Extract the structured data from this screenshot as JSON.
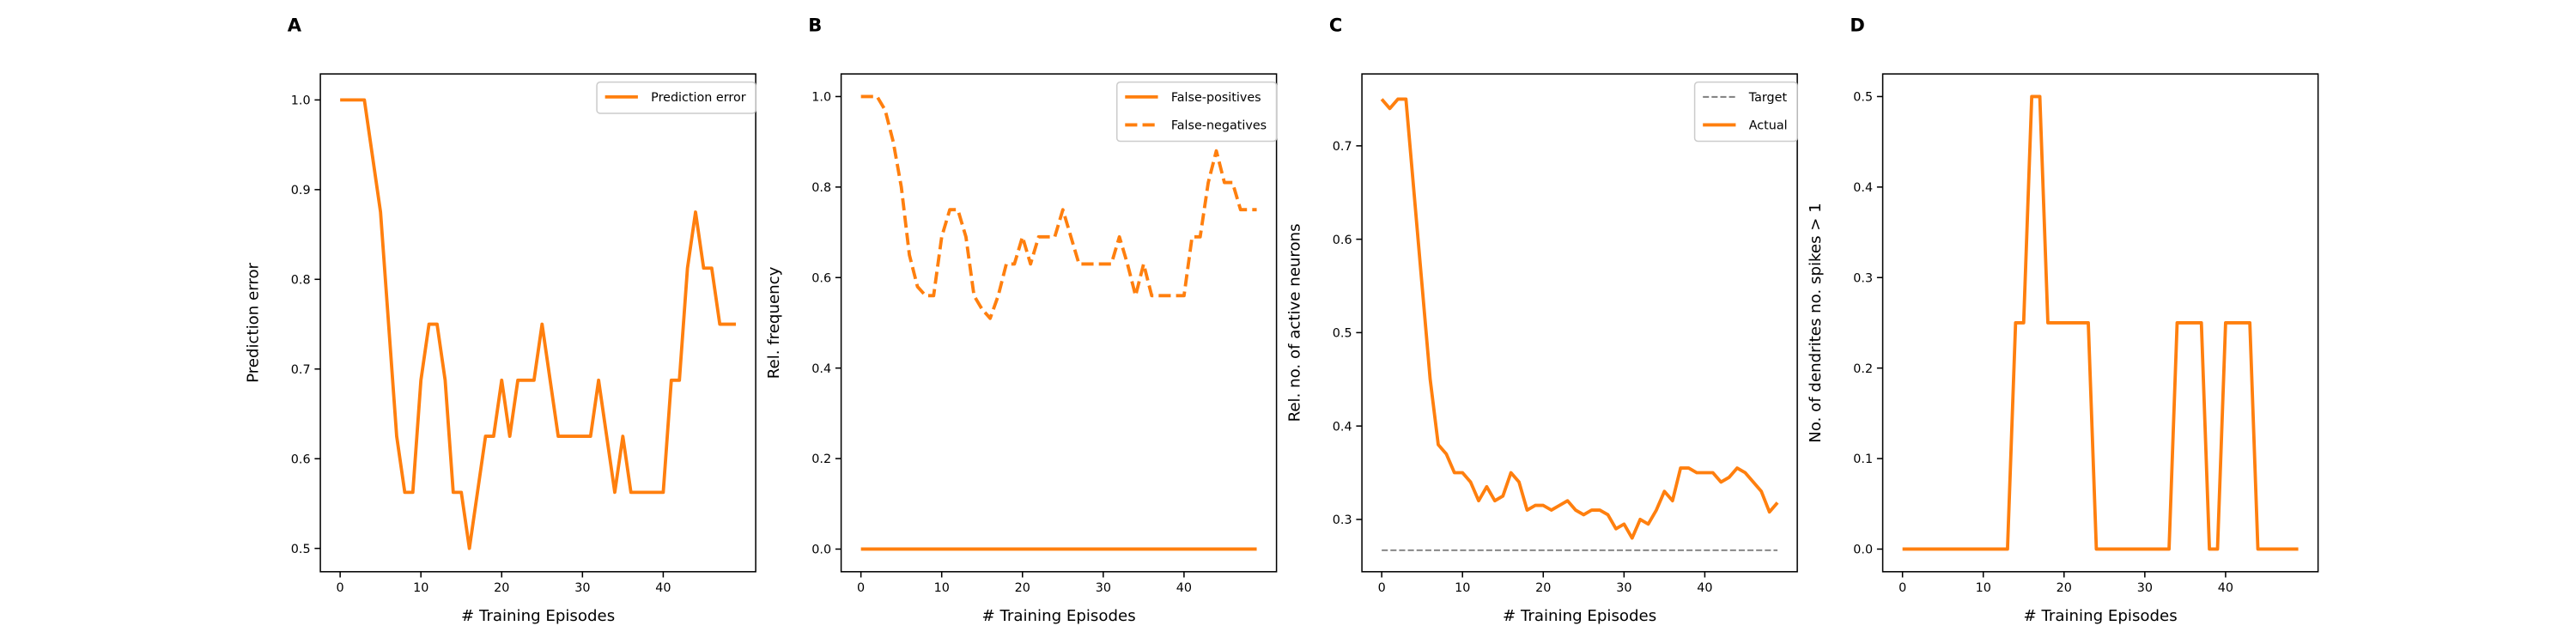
{
  "chart_data": [
    {
      "type": "line",
      "panel_label": "A",
      "xlabel": "# Training Episodes",
      "ylabel": "Prediction error",
      "x": [
        0,
        1,
        2,
        3,
        4,
        5,
        6,
        7,
        8,
        9,
        10,
        11,
        12,
        13,
        14,
        15,
        16,
        17,
        18,
        19,
        20,
        21,
        22,
        23,
        24,
        25,
        26,
        27,
        28,
        29,
        30,
        31,
        32,
        33,
        34,
        35,
        36,
        37,
        38,
        39,
        40,
        41,
        42,
        43,
        44,
        45,
        46,
        47,
        48,
        49
      ],
      "series": [
        {
          "name": "Prediction error",
          "color": "#ff7f0e",
          "dash": "solid",
          "values": [
            1,
            1,
            1,
            1,
            0.9375,
            0.875,
            0.75,
            0.625,
            0.5625,
            0.5625,
            0.6875,
            0.75,
            0.75,
            0.6875,
            0.5625,
            0.5625,
            0.5,
            0.5625,
            0.625,
            0.625,
            0.6875,
            0.625,
            0.6875,
            0.6875,
            0.6875,
            0.75,
            0.6875,
            0.625,
            0.625,
            0.625,
            0.625,
            0.625,
            0.6875,
            0.625,
            0.5625,
            0.625,
            0.5625,
            0.5625,
            0.5625,
            0.5625,
            0.5625,
            0.6875,
            0.6875,
            0.8125,
            0.875,
            0.8125,
            0.8125,
            0.75,
            0.75,
            0.75
          ]
        }
      ],
      "xlim": [
        -2.45,
        51.45
      ],
      "ylim": [
        0.474,
        1.029
      ],
      "xticks": [
        0,
        10,
        20,
        30,
        40
      ],
      "yticks": [
        0.5,
        0.6,
        0.7,
        0.8,
        0.9,
        {
          "value": 1,
          "label": "1.0"
        }
      ],
      "legend": "upper right"
    },
    {
      "type": "line",
      "panel_label": "B",
      "xlabel": "# Training Episodes",
      "ylabel": "Rel. frequency",
      "x": [
        0,
        1,
        2,
        3,
        4,
        5,
        6,
        7,
        8,
        9,
        10,
        11,
        12,
        13,
        14,
        15,
        16,
        17,
        18,
        19,
        20,
        21,
        22,
        23,
        24,
        25,
        26,
        27,
        28,
        29,
        30,
        31,
        32,
        33,
        34,
        35,
        36,
        37,
        38,
        39,
        40,
        41,
        42,
        43,
        44,
        45,
        46,
        47,
        48,
        49
      ],
      "series": [
        {
          "name": "False-positives",
          "color": "#ff7f0e",
          "dash": "solid",
          "values": [
            0,
            0,
            0,
            0,
            0,
            0,
            0,
            0,
            0,
            0,
            0,
            0,
            0,
            0,
            0,
            0,
            0,
            0,
            0,
            0,
            0,
            0,
            0,
            0,
            0,
            0,
            0,
            0,
            0,
            0,
            0,
            0,
            0,
            0,
            0,
            0,
            0,
            0,
            0,
            0,
            0,
            0,
            0,
            0,
            0,
            0,
            0,
            0,
            0,
            0
          ]
        },
        {
          "name": "False-negatives",
          "color": "#ff7f0e",
          "dash": "dashed",
          "values": [
            1,
            1,
            1,
            0.97,
            0.9,
            0.8,
            0.65,
            0.58,
            0.56,
            0.56,
            0.69,
            0.75,
            0.75,
            0.69,
            0.56,
            0.53,
            0.51,
            0.56,
            0.63,
            0.63,
            0.69,
            0.63,
            0.69,
            0.69,
            0.69,
            0.75,
            0.69,
            0.63,
            0.63,
            0.63,
            0.63,
            0.63,
            0.69,
            0.63,
            0.56,
            0.63,
            0.56,
            0.56,
            0.56,
            0.56,
            0.56,
            0.69,
            0.69,
            0.81,
            0.88,
            0.81,
            0.81,
            0.75,
            0.75,
            0.75
          ]
        }
      ],
      "xlim": [
        -2.45,
        51.45
      ],
      "ylim": [
        -0.05,
        1.05
      ],
      "xticks": [
        0,
        10,
        20,
        30,
        40
      ],
      "yticks": [
        {
          "value": 0,
          "label": "0.0"
        },
        0.2,
        0.4,
        0.6,
        0.8,
        {
          "value": 1,
          "label": "1.0"
        }
      ],
      "legend": "upper right"
    },
    {
      "type": "line",
      "panel_label": "C",
      "xlabel": "# Training Episodes",
      "ylabel": "Rel. no. of active neurons",
      "x": [
        0,
        1,
        2,
        3,
        4,
        5,
        6,
        7,
        8,
        9,
        10,
        11,
        12,
        13,
        14,
        15,
        16,
        17,
        18,
        19,
        20,
        21,
        22,
        23,
        24,
        25,
        26,
        27,
        28,
        29,
        30,
        31,
        32,
        33,
        34,
        35,
        36,
        37,
        38,
        39,
        40,
        41,
        42,
        43,
        44,
        45,
        46,
        47,
        48,
        49
      ],
      "series": [
        {
          "name": "Target",
          "color": "#7f7f7f",
          "dash": "dashed",
          "width": 1,
          "values": [
            0.267,
            0.267,
            0.267,
            0.267,
            0.267,
            0.267,
            0.267,
            0.267,
            0.267,
            0.267,
            0.267,
            0.267,
            0.267,
            0.267,
            0.267,
            0.267,
            0.267,
            0.267,
            0.267,
            0.267,
            0.267,
            0.267,
            0.267,
            0.267,
            0.267,
            0.267,
            0.267,
            0.267,
            0.267,
            0.267,
            0.267,
            0.267,
            0.267,
            0.267,
            0.267,
            0.267,
            0.267,
            0.267,
            0.267,
            0.267,
            0.267,
            0.267,
            0.267,
            0.267,
            0.267,
            0.267,
            0.267,
            0.267,
            0.267,
            0.267
          ]
        },
        {
          "name": "Actual",
          "color": "#ff7f0e",
          "dash": "solid",
          "values": [
            0.75,
            0.74,
            0.75,
            0.75,
            0.65,
            0.55,
            0.45,
            0.38,
            0.37,
            0.35,
            0.35,
            0.34,
            0.32,
            0.335,
            0.32,
            0.325,
            0.35,
            0.34,
            0.31,
            0.315,
            0.315,
            0.31,
            0.315,
            0.32,
            0.31,
            0.305,
            0.31,
            0.31,
            0.305,
            0.29,
            0.295,
            0.28,
            0.3,
            0.295,
            0.31,
            0.33,
            0.32,
            0.355,
            0.355,
            0.35,
            0.35,
            0.35,
            0.34,
            0.345,
            0.355,
            0.35,
            0.34,
            0.33,
            0.308,
            0.318
          ]
        }
      ],
      "xlim": [
        -2.45,
        51.45
      ],
      "ylim": [
        0.244,
        0.777
      ],
      "xticks": [
        0,
        10,
        20,
        30,
        40
      ],
      "yticks": [
        0.3,
        0.4,
        0.5,
        0.6,
        0.7
      ],
      "legend": "upper right"
    },
    {
      "type": "line",
      "panel_label": "D",
      "xlabel": "# Training Episodes",
      "ylabel": "No. of dendrites no. spikes > 1",
      "x": [
        0,
        1,
        2,
        3,
        4,
        5,
        6,
        7,
        8,
        9,
        10,
        11,
        12,
        13,
        14,
        15,
        16,
        17,
        18,
        19,
        20,
        21,
        22,
        23,
        24,
        25,
        26,
        27,
        28,
        29,
        30,
        31,
        32,
        33,
        34,
        35,
        36,
        37,
        38,
        39,
        40,
        41,
        42,
        43,
        44,
        45,
        46,
        47,
        48,
        49
      ],
      "series": [
        {
          "name": "No. of dendrites no. spikes > 1",
          "color": "#ff7f0e",
          "dash": "solid",
          "values": [
            0,
            0,
            0,
            0,
            0,
            0,
            0,
            0,
            0,
            0,
            0,
            0,
            0,
            0,
            0.25,
            0.25,
            0.5,
            0.5,
            0.25,
            0.25,
            0.25,
            0.25,
            0.25,
            0.25,
            0,
            0,
            0,
            0,
            0,
            0,
            0,
            0,
            0,
            0,
            0.25,
            0.25,
            0.25,
            0.25,
            0,
            0,
            0.25,
            0.25,
            0.25,
            0.25,
            0,
            0,
            0,
            0,
            0,
            0
          ]
        }
      ],
      "xlim": [
        -2.45,
        51.45
      ],
      "ylim": [
        -0.025,
        0.525
      ],
      "xticks": [
        0,
        10,
        20,
        30,
        40
      ],
      "yticks": [
        {
          "value": 0,
          "label": "0.0"
        },
        0.1,
        0.2,
        0.3,
        0.4,
        0.5
      ],
      "legend": "none"
    }
  ]
}
